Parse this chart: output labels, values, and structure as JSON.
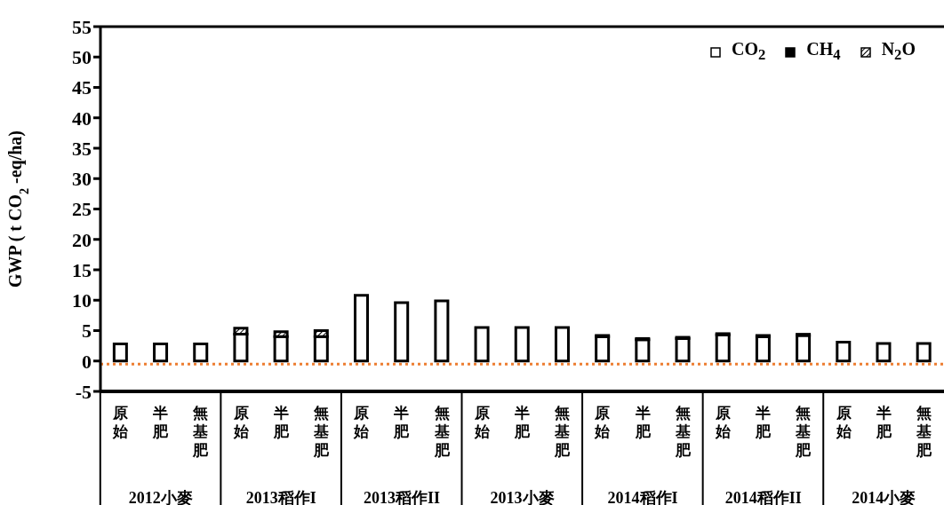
{
  "chart_data": {
    "type": "bar",
    "stacked": true,
    "ylabel": "GWP ( t CO$_{2}$ -eq/ha)",
    "categories": [
      "原始",
      "半肥",
      "無基肥",
      "原始",
      "半肥",
      "無基肥",
      "原始",
      "半肥",
      "無基肥",
      "原始",
      "半肥",
      "無基肥",
      "原始",
      "半肥",
      "無基肥",
      "原始",
      "半肥",
      "無基肥",
      "原始",
      "半肥",
      "無基肥"
    ],
    "series": [
      {
        "name": "CO$_{2}$",
        "color": "#ffffff",
        "values": [
          2.8,
          2.8,
          2.8,
          4.4,
          4.0,
          4.0,
          10.8,
          9.6,
          9.9,
          5.5,
          5.5,
          5.5,
          4.0,
          3.5,
          3.7,
          4.3,
          4.0,
          4.2,
          3.1,
          2.9,
          2.9
        ]
      },
      {
        "name": "CH$_{4}$",
        "color": "#000000",
        "values": [
          0,
          0,
          0,
          0,
          0,
          0,
          0,
          0,
          0,
          0,
          0,
          0,
          0.2,
          0.2,
          0.2,
          0.2,
          0.2,
          0.2,
          0,
          0,
          0
        ]
      },
      {
        "name": "N$_{2}$O",
        "color": "#000000",
        "values": [
          0,
          0,
          0,
          1.0,
          0.8,
          1.0,
          0,
          0,
          0,
          0,
          0,
          0,
          0,
          0,
          0,
          0,
          0,
          0,
          0,
          0,
          0
        ]
      }
    ],
    "annotations": [
      "2012小麥",
      "2013稻作I",
      "2013稻作II",
      "2013小麥",
      "2014稻作I",
      "2014稻作II",
      "2014小麥"
    ],
    "ylim": [
      -5,
      55
    ],
    "yticks": [
      -5,
      0,
      5,
      10,
      15,
      20,
      25,
      30,
      35,
      40,
      45,
      50,
      55
    ],
    "grid": false,
    "legend": "top right",
    "ref_lines": [
      {
        "axis": "y",
        "value": -0.5,
        "color": "#ed7d31",
        "line_style": "dotted"
      }
    ]
  }
}
